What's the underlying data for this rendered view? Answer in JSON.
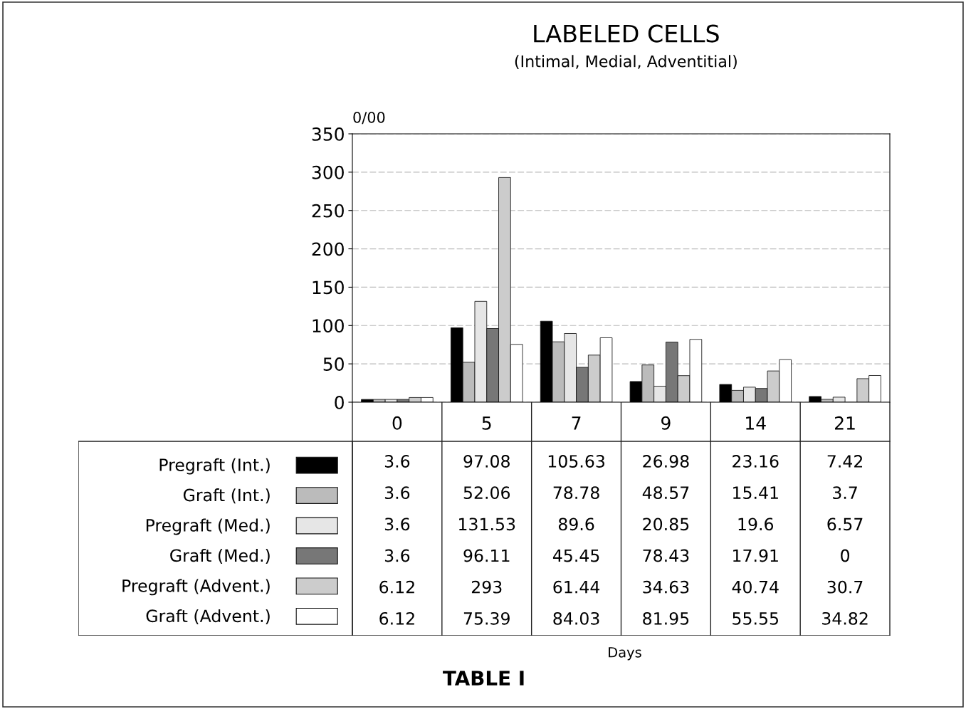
{
  "chart_data": {
    "type": "bar",
    "title": "LABELED CELLS",
    "subtitle": "(Intimal, Medial, Adventitial)",
    "ylabel": "0/00",
    "categories": [
      "0",
      "5",
      "7",
      "9",
      "14",
      "21"
    ],
    "series": [
      {
        "name": "Pregraft (Int.)",
        "color": "#000000",
        "values": [
          3.6,
          97.08,
          105.63,
          26.98,
          23.16,
          7.42
        ]
      },
      {
        "name": "Graft (Int.)",
        "color": "#bbbbbb",
        "values": [
          3.6,
          52.06,
          78.78,
          48.57,
          15.41,
          3.7
        ]
      },
      {
        "name": "Pregraft (Med.)",
        "color": "#e6e6e6",
        "values": [
          3.6,
          131.53,
          89.6,
          20.85,
          19.6,
          6.57
        ]
      },
      {
        "name": "Graft (Med.)",
        "color": "#777777",
        "values": [
          3.6,
          96.11,
          45.45,
          78.43,
          17.91,
          0
        ]
      },
      {
        "name": "Pregraft (Advent.)",
        "color": "#cccccc",
        "values": [
          6.12,
          293,
          61.44,
          34.63,
          40.74,
          30.7
        ]
      },
      {
        "name": "Graft (Advent.)",
        "color": "#ffffff",
        "values": [
          6.12,
          75.39,
          84.03,
          81.95,
          55.55,
          34.82
        ]
      }
    ],
    "ylim": [
      0,
      350
    ],
    "yticks": [
      0,
      50,
      100,
      150,
      200,
      250,
      300,
      350
    ],
    "grid": "y",
    "legend": "bottom",
    "data_labels": true,
    "annotations": [
      "Days",
      "TABLE I"
    ]
  }
}
